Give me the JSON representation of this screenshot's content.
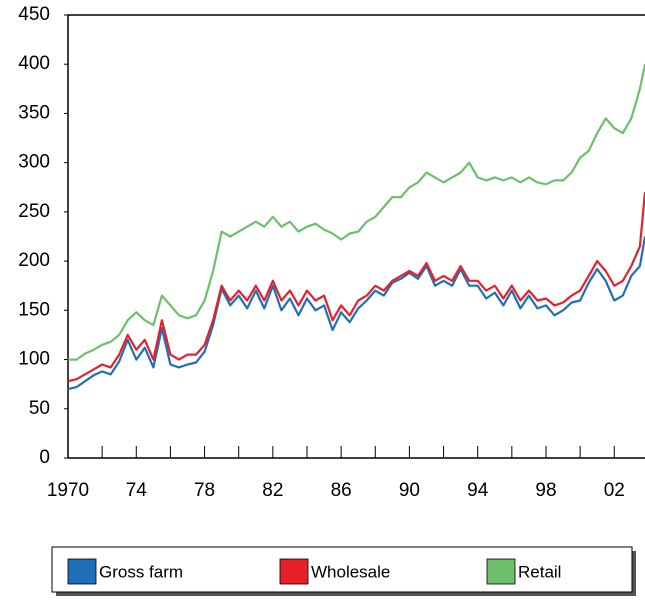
{
  "chart_data": {
    "type": "line",
    "x": [
      1970,
      1970.5,
      1971,
      1971.5,
      1972,
      1972.5,
      1973,
      1973.5,
      1974,
      1974.5,
      1975,
      1975.5,
      1976,
      1976.5,
      1977,
      1977.5,
      1978,
      1978.5,
      1979,
      1979.5,
      1980,
      1980.5,
      1981,
      1981.5,
      1982,
      1982.5,
      1983,
      1983.5,
      1984,
      1984.5,
      1985,
      1985.5,
      1986,
      1986.5,
      1987,
      1987.5,
      1988,
      1988.5,
      1989,
      1989.5,
      1990,
      1990.5,
      1991,
      1991.5,
      1992,
      1992.5,
      1993,
      1993.5,
      1994,
      1994.5,
      1995,
      1995.5,
      1996,
      1996.5,
      1997,
      1997.5,
      1998,
      1998.5,
      1999,
      1999.5,
      2000,
      2000.5,
      2001,
      2001.5,
      2002,
      2002.5,
      2003,
      2003.5,
      2003.8
    ],
    "series": [
      {
        "name": "Gross farm",
        "color": "#1f6fba",
        "values": [
          70,
          72,
          78,
          84,
          88,
          85,
          98,
          120,
          100,
          112,
          92,
          132,
          95,
          92,
          95,
          97,
          108,
          135,
          172,
          155,
          165,
          152,
          170,
          152,
          175,
          150,
          162,
          145,
          162,
          150,
          155,
          130,
          148,
          138,
          152,
          160,
          170,
          165,
          178,
          182,
          188,
          182,
          195,
          175,
          180,
          175,
          192,
          175,
          175,
          162,
          168,
          155,
          170,
          152,
          165,
          152,
          155,
          145,
          150,
          158,
          160,
          178,
          192,
          180,
          160,
          165,
          185,
          195,
          225
        ]
      },
      {
        "name": "Wholesale",
        "color": "#e8202a",
        "values": [
          78,
          80,
          85,
          90,
          95,
          92,
          105,
          125,
          110,
          120,
          100,
          140,
          105,
          100,
          105,
          105,
          115,
          140,
          175,
          160,
          170,
          160,
          175,
          160,
          180,
          160,
          170,
          155,
          170,
          160,
          165,
          140,
          155,
          145,
          160,
          165,
          175,
          170,
          180,
          185,
          190,
          185,
          198,
          180,
          185,
          180,
          195,
          180,
          180,
          170,
          175,
          162,
          175,
          160,
          170,
          160,
          162,
          155,
          158,
          165,
          170,
          185,
          200,
          190,
          175,
          180,
          195,
          215,
          270
        ]
      },
      {
        "name": "Retail",
        "color": "#6dbf6b",
        "values": [
          100,
          100,
          106,
          110,
          115,
          118,
          125,
          140,
          148,
          140,
          135,
          165,
          155,
          145,
          142,
          145,
          160,
          190,
          230,
          225,
          230,
          235,
          240,
          235,
          245,
          235,
          240,
          230,
          235,
          238,
          232,
          228,
          222,
          228,
          230,
          240,
          245,
          255,
          265,
          265,
          275,
          280,
          290,
          285,
          280,
          285,
          290,
          300,
          285,
          282,
          285,
          282,
          285,
          280,
          285,
          280,
          278,
          282,
          282,
          290,
          305,
          312,
          330,
          345,
          335,
          330,
          345,
          375,
          400
        ]
      }
    ],
    "xlim": [
      1970,
      2003.8
    ],
    "xticks": [
      1970,
      {
        "value": 1974,
        "label": "74"
      },
      {
        "value": 1978,
        "label": "78"
      },
      {
        "value": 1982,
        "label": "82"
      },
      {
        "value": 1986,
        "label": "86"
      },
      {
        "value": 1990,
        "label": "90"
      },
      {
        "value": 1994,
        "label": "94"
      },
      {
        "value": 1998,
        "label": "98"
      },
      {
        "value": 2002,
        "label": "02"
      }
    ],
    "xminorticks": [
      1972,
      1976,
      1980,
      1984,
      1988,
      1992,
      1996,
      2000
    ],
    "ylim": [
      0,
      450
    ],
    "yticks": [
      0,
      50,
      100,
      150,
      200,
      250,
      300,
      350,
      400,
      450
    ],
    "legend": "bottom"
  }
}
